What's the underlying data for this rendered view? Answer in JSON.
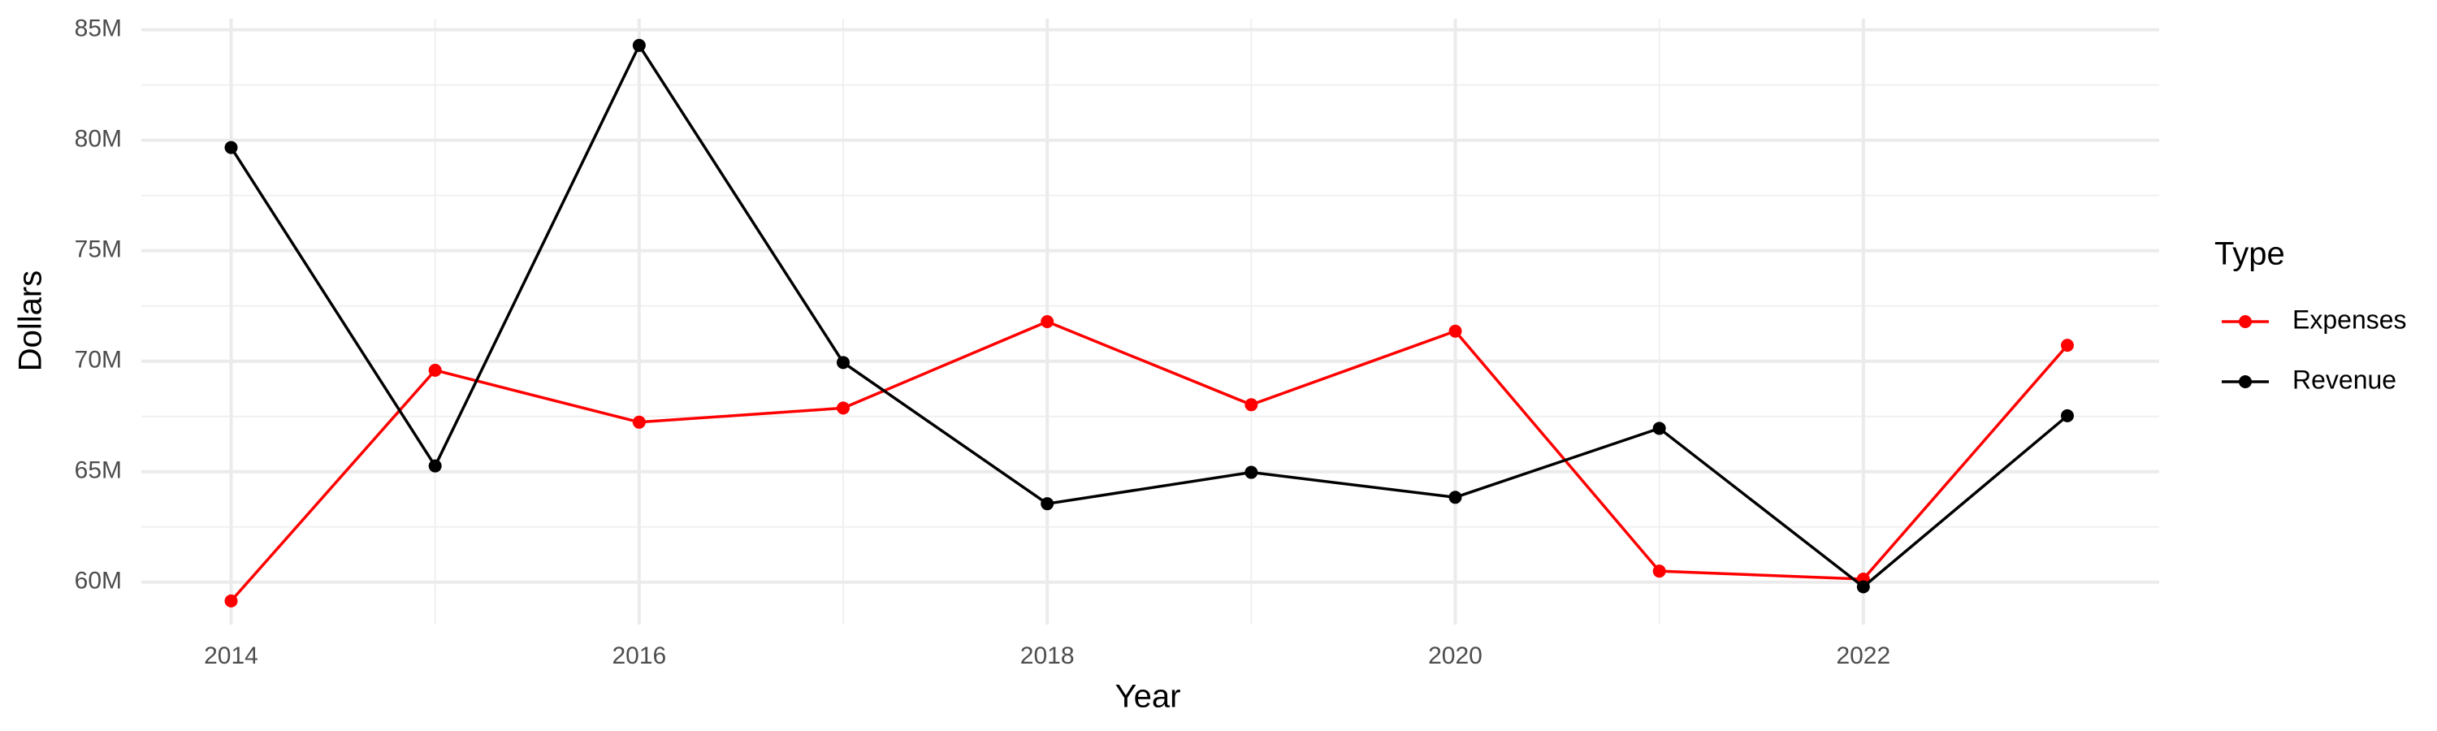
{
  "chart_data": {
    "type": "line",
    "x_label": "Year",
    "y_label": "Dollars",
    "legend_title": "Type",
    "x": [
      2014,
      2015,
      2016,
      2017,
      2018,
      2019,
      2020,
      2021,
      2022,
      2023
    ],
    "series": [
      {
        "name": "Expenses",
        "color": "#ff0000",
        "values": [
          59150000,
          69590000,
          67240000,
          67880000,
          71790000,
          68030000,
          71360000,
          60500000,
          60140000,
          70720000
        ]
      },
      {
        "name": "Revenue",
        "color": "#000000",
        "values": [
          79670000,
          65260000,
          84290000,
          69940000,
          63550000,
          64970000,
          63840000,
          66960000,
          59790000,
          67530000
        ]
      }
    ],
    "xlim": [
      2013.56,
      2023.45
    ],
    "xticks": [
      2014,
      2016,
      2018,
      2020,
      2022
    ],
    "ylim": [
      58080000,
      85500000
    ],
    "yticks": [
      {
        "value": 60000000,
        "label": "60M"
      },
      {
        "value": 65000000,
        "label": "65M"
      },
      {
        "value": 70000000,
        "label": "70M"
      },
      {
        "value": 75000000,
        "label": "75M"
      },
      {
        "value": 80000000,
        "label": "80M"
      },
      {
        "value": 85000000,
        "label": "85M"
      }
    ],
    "grid": true,
    "minor_grid": true,
    "legend_position": "right"
  }
}
